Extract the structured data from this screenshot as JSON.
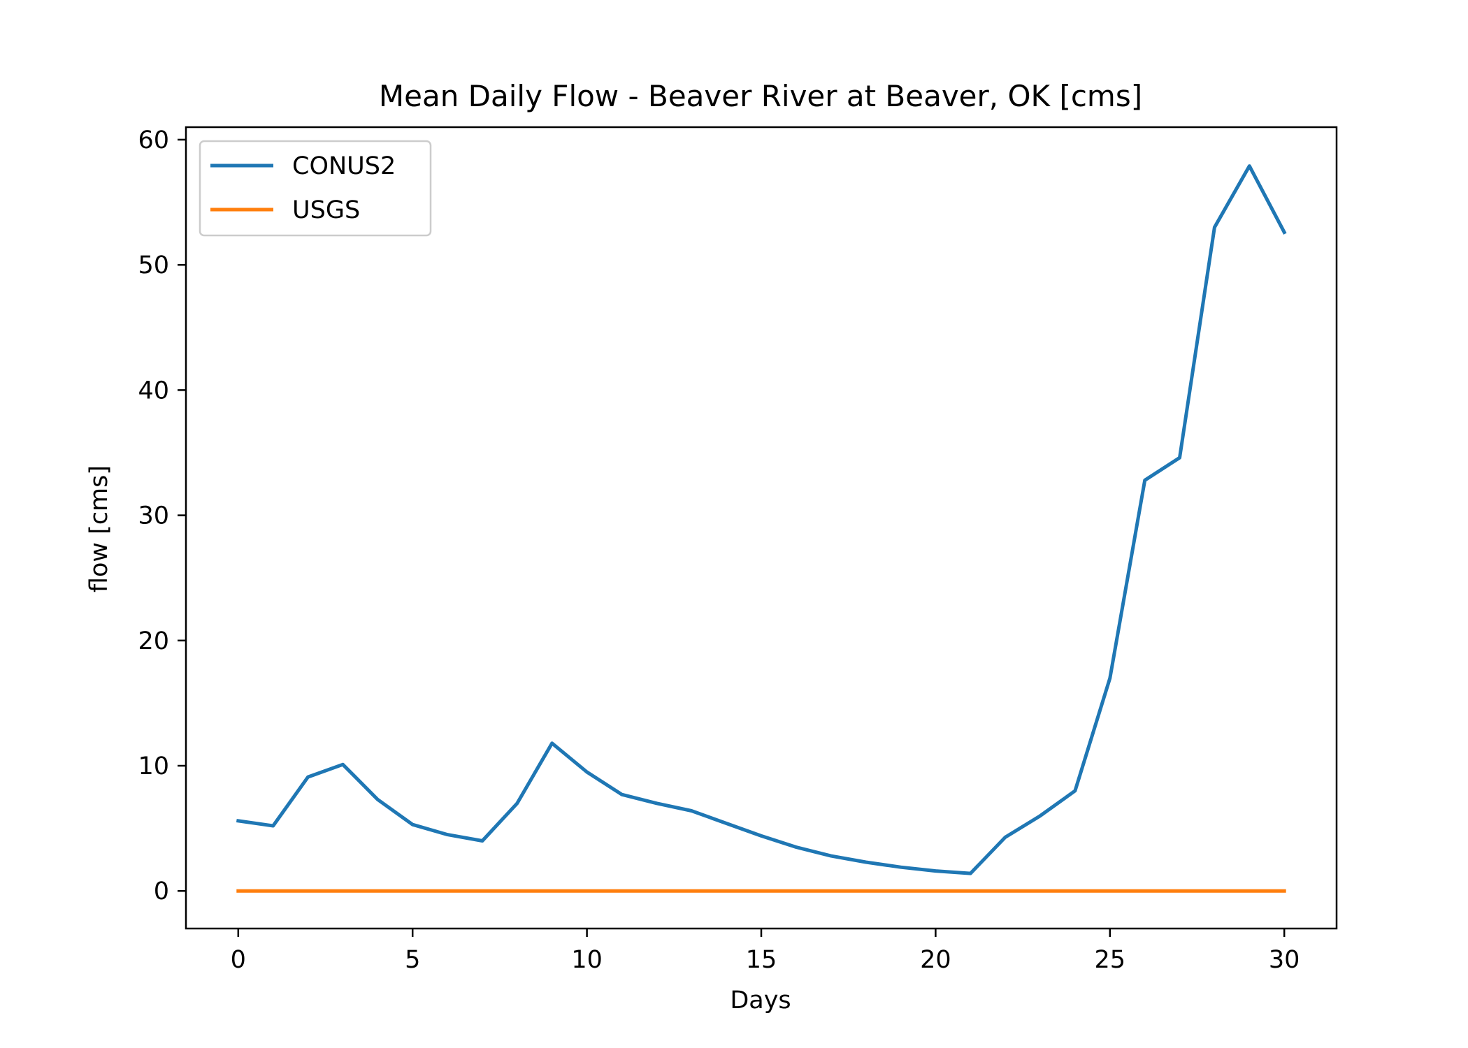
{
  "chart_data": {
    "type": "line",
    "title": "Mean Daily Flow - Beaver River at Beaver, OK [cms]",
    "xlabel": "Days",
    "ylabel": "flow [cms]",
    "xlim": [
      -1.5,
      31.5
    ],
    "ylim": [
      -3,
      61
    ],
    "xticks": [
      0,
      5,
      10,
      15,
      20,
      25,
      30
    ],
    "yticks": [
      0,
      10,
      20,
      30,
      40,
      50,
      60
    ],
    "grid": false,
    "legend_position": "upper-left",
    "x": [
      0,
      1,
      2,
      3,
      4,
      5,
      6,
      7,
      8,
      9,
      10,
      11,
      12,
      13,
      14,
      15,
      16,
      17,
      18,
      19,
      20,
      21,
      22,
      23,
      24,
      25,
      26,
      27,
      28,
      29,
      30
    ],
    "series": [
      {
        "name": "CONUS2",
        "color": "#1f77b4",
        "values": [
          5.6,
          5.2,
          9.1,
          10.1,
          7.3,
          5.3,
          4.5,
          4.0,
          7.0,
          11.8,
          9.5,
          7.7,
          7.0,
          6.4,
          5.4,
          4.4,
          3.5,
          2.8,
          2.3,
          1.9,
          1.6,
          1.4,
          4.3,
          6.0,
          8.0,
          17.0,
          32.8,
          34.6,
          53.0,
          57.9,
          52.6
        ]
      },
      {
        "name": "USGS",
        "color": "#ff7f0e",
        "values": [
          0,
          0,
          0,
          0,
          0,
          0,
          0,
          0,
          0,
          0,
          0,
          0,
          0,
          0,
          0,
          0,
          0,
          0,
          0,
          0,
          0,
          0,
          0,
          0,
          0,
          0,
          0,
          0,
          0,
          0,
          0
        ]
      }
    ]
  }
}
